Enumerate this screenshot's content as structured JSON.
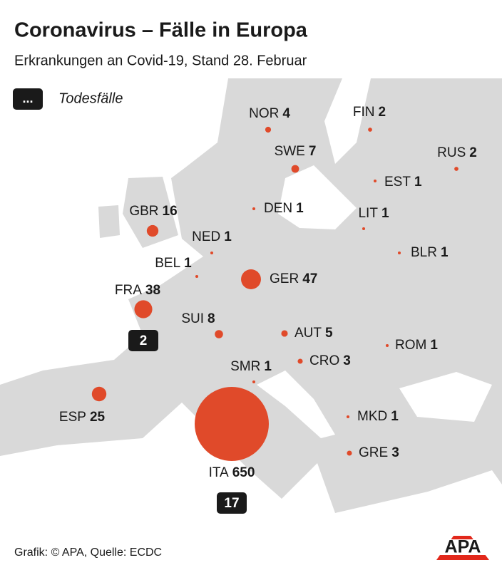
{
  "title": "Coronavirus – Fälle in Europa",
  "subtitle": "Erkrankungen an Covid-19, Stand 28. Februar",
  "legend": {
    "box": "...",
    "label": "Todesfälle"
  },
  "countries": [
    {
      "code": "NOR",
      "cases": 4
    },
    {
      "code": "FIN",
      "cases": 2
    },
    {
      "code": "SWE",
      "cases": 7
    },
    {
      "code": "RUS",
      "cases": 2
    },
    {
      "code": "EST",
      "cases": 1
    },
    {
      "code": "DEN",
      "cases": 1
    },
    {
      "code": "LIT",
      "cases": 1
    },
    {
      "code": "GBR",
      "cases": 16
    },
    {
      "code": "NED",
      "cases": 1
    },
    {
      "code": "BLR",
      "cases": 1
    },
    {
      "code": "BEL",
      "cases": 1
    },
    {
      "code": "GER",
      "cases": 47
    },
    {
      "code": "FRA",
      "cases": 38,
      "deaths": 2
    },
    {
      "code": "SUI",
      "cases": 8
    },
    {
      "code": "AUT",
      "cases": 5
    },
    {
      "code": "ROM",
      "cases": 1
    },
    {
      "code": "CRO",
      "cases": 3
    },
    {
      "code": "SMR",
      "cases": 1
    },
    {
      "code": "ESP",
      "cases": 25
    },
    {
      "code": "MKD",
      "cases": 1
    },
    {
      "code": "GRE",
      "cases": 3
    },
    {
      "code": "ITA",
      "cases": 650,
      "deaths": 17
    }
  ],
  "footer": "Grafik: © APA, Quelle: ECDC",
  "logo": "APA"
}
